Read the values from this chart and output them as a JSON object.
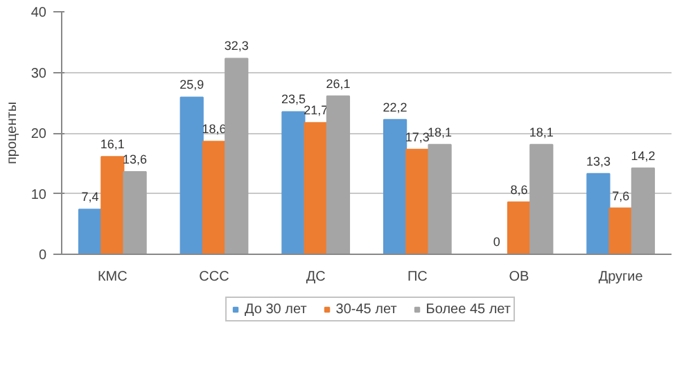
{
  "chart_data": {
    "type": "bar",
    "ylabel": "проценты",
    "categories": [
      "КМС",
      "ССС",
      "ДС",
      "ПС",
      "ОВ",
      "Другие"
    ],
    "series": [
      {
        "name": "До 30 лет",
        "color": "#5b9bd5",
        "values": [
          7.4,
          25.9,
          23.5,
          22.2,
          0,
          13.3
        ],
        "value_labels": [
          "7,4",
          "25,9",
          "23,5",
          "22,2",
          "0",
          "13,3"
        ]
      },
      {
        "name": "30-45 лет",
        "color": "#ed7d31",
        "values": [
          16.1,
          18.6,
          21.7,
          17.3,
          8.6,
          7.6
        ],
        "value_labels": [
          "16,1",
          "18,6",
          "21,7",
          "17,3",
          "8,6",
          "7,6"
        ]
      },
      {
        "name": "Более 45 лет",
        "color": "#a5a5a5",
        "values": [
          13.6,
          32.3,
          26.1,
          18.1,
          18.1,
          14.2
        ],
        "value_labels": [
          "13,6",
          "32,3",
          "26,1",
          "18,1",
          "18,1",
          "14,2"
        ]
      }
    ],
    "ylim": [
      0,
      40
    ],
    "yticks": [
      0,
      10,
      20,
      30,
      40
    ],
    "grid": "y",
    "legend": "bottom"
  }
}
